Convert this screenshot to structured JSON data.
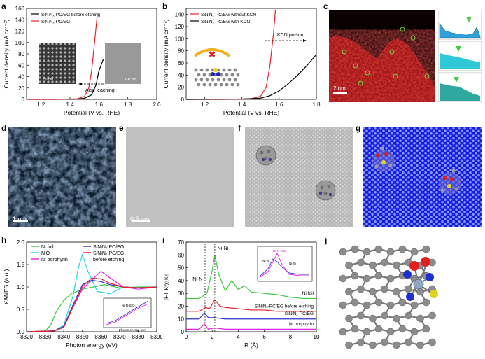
{
  "panels": {
    "a": {
      "letter": "a",
      "chart_data": {
        "type": "line",
        "xlabel": "Potential (V vs. RHE)",
        "ylabel": "Current density (mA cm⁻²)",
        "xlim": [
          1.1,
          2.0
        ],
        "ylim": [
          0,
          160
        ],
        "xticks": [
          "1.2",
          "1.4",
          "1.6",
          "1.8",
          "2.0"
        ],
        "yticks": [
          "0",
          "20",
          "40",
          "60",
          "80",
          "100",
          "120",
          "140",
          "160"
        ],
        "legend": [
          "SiNiNₓ-PC/EG before etching",
          "SiNiNₓ-PC/EG"
        ],
        "series": [
          {
            "name": "SiNiNₓ-PC/EG before etching",
            "color": "#000000",
            "x": [
              1.1,
              1.3,
              1.45,
              1.5,
              1.55,
              1.58,
              1.6,
              1.63
            ],
            "y": [
              0,
              0,
              0.5,
              2,
              8,
              25,
              50,
              70
            ]
          },
          {
            "name": "SiNiNₓ-PC/EG",
            "color": "#e8202a",
            "x": [
              1.1,
              1.3,
              1.45,
              1.5,
              1.53,
              1.55,
              1.57,
              1.59
            ],
            "y": [
              0,
              0,
              1,
              5,
              20,
              50,
              100,
              152
            ]
          }
        ],
        "annotation": "Acid leaching",
        "scale_bars": [
          "50 nm",
          "100 nm"
        ]
      }
    },
    "b": {
      "letter": "b",
      "chart_data": {
        "type": "line",
        "xlabel": "Potential (V vs. RHE)",
        "ylabel": "Current density (mA cm⁻²)",
        "xlim": [
          1.1,
          1.8
        ],
        "ylim": [
          0,
          150
        ],
        "xticks": [
          "1.2",
          "1.4",
          "1.6",
          "1.8"
        ],
        "yticks": [
          "0",
          "20",
          "40",
          "60",
          "80",
          "100",
          "120",
          "140"
        ],
        "legend": [
          "SiNiNₓ-PC/EG without KCN",
          "SiNiNₓ-PC/EG with KCN"
        ],
        "series": [
          {
            "name": "SiNiNₓ-PC/EG without KCN",
            "color": "#e8202a",
            "x": [
              1.1,
              1.3,
              1.45,
              1.5,
              1.53,
              1.55,
              1.57,
              1.58
            ],
            "y": [
              0,
              0,
              1,
              5,
              20,
              55,
              110,
              148
            ]
          },
          {
            "name": "SiNiNₓ-PC/EG with KCN",
            "color": "#000000",
            "x": [
              1.1,
              1.4,
              1.5,
              1.55,
              1.6,
              1.65,
              1.7,
              1.75,
              1.8
            ],
            "y": [
              0,
              0.5,
              2,
              6,
              14,
              26,
              40,
              56,
              74
            ]
          }
        ],
        "annotation": "KCN poison"
      }
    },
    "c": {
      "letter": "c",
      "scale_bar": "2 nm"
    },
    "d": {
      "letter": "d",
      "scale_bar": "1 nm"
    },
    "e": {
      "letter": "e",
      "scale_bar": "0.5 nm"
    },
    "f": {
      "letter": "f"
    },
    "g": {
      "letter": "g"
    },
    "h": {
      "letter": "h",
      "chart_data": {
        "type": "line",
        "xlabel": "Photon energy (eV)",
        "ylabel": "XANES (a.u.)",
        "xlim": [
          8320,
          8390
        ],
        "ylim": [
          0,
          2.0
        ],
        "xticks": [
          "8320",
          "8330",
          "8340",
          "8350",
          "8360",
          "8370",
          "8380",
          "8390"
        ],
        "yticks": [
          "0.0",
          "0.5",
          "1.0",
          "1.5",
          "2.0"
        ],
        "legend": [
          "Ni foil",
          "NiO",
          "Ni porphyrin",
          "SiNiNₓ-PC/EG",
          "SiNiNₓ-PC/EG",
          "before etching"
        ],
        "series": [
          {
            "name": "Ni foil",
            "color": "#3cc83c",
            "x": [
              8320,
              8330,
              8333,
              8336,
              8340,
              8344,
              8350,
              8356,
              8362,
              8370,
              8380,
              8390
            ],
            "y": [
              0,
              0.02,
              0.15,
              0.45,
              0.7,
              0.85,
              0.95,
              1.0,
              1.05,
              0.98,
              1.0,
              1.0
            ]
          },
          {
            "name": "NiO",
            "color": "#20d8e0",
            "x": [
              8320,
              8335,
              8340,
              8345,
              8348,
              8350,
              8353,
              8358,
              8365,
              8372,
              8380,
              8390
            ],
            "y": [
              0,
              0.02,
              0.15,
              0.8,
              1.45,
              1.72,
              1.35,
              0.9,
              0.85,
              1.0,
              0.98,
              1.0
            ]
          },
          {
            "name": "Ni porphyrin",
            "color": "#e020e0",
            "x": [
              8320,
              8335,
              8340,
              8345,
              8350,
              8355,
              8360,
              8365,
              8372,
              8380,
              8390
            ],
            "y": [
              0,
              0.02,
              0.1,
              0.55,
              0.95,
              1.15,
              1.35,
              1.2,
              1.0,
              0.95,
              1.0
            ]
          },
          {
            "name": "SiNiNₓ-PC/EG",
            "color": "#3030c8",
            "x": [
              8320,
              8335,
              8340,
              8345,
              8350,
              8355,
              8360,
              8365,
              8372,
              8380,
              8390
            ],
            "y": [
              0,
              0.02,
              0.12,
              0.6,
              1.05,
              1.15,
              1.12,
              1.05,
              1.0,
              0.98,
              1.0
            ]
          },
          {
            "name": "SiNiNₓ-PC/EG before etching",
            "color": "#e8202a",
            "x": [
              8320,
              8335,
              8340,
              8345,
              8350,
              8355,
              8360,
              8365,
              8372,
              8380,
              8390
            ],
            "y": [
              0,
              0.02,
              0.1,
              0.55,
              1.0,
              1.2,
              1.18,
              1.08,
              1.0,
              0.98,
              1.0
            ]
          }
        ],
        "inset_label": "Ni-N-SiO₂",
        "inset_xlabel": "Photon energy (eV)"
      }
    },
    "i": {
      "letter": "i",
      "chart_data": {
        "type": "line",
        "xlabel": "R (Å)",
        "ylabel": "|FT k³χ(k)|",
        "xlim": [
          0,
          10
        ],
        "ylim": [
          0,
          70
        ],
        "xticks": [
          "0",
          "2",
          "4",
          "6",
          "8",
          "10"
        ],
        "yticks": [
          "0",
          "10",
          "20",
          "30",
          "40",
          "50",
          "60",
          "70"
        ],
        "labels": [
          "Ni-N",
          "Ni-Ni",
          "Ni foil",
          "SiNiNₓ-PC/EG before etching",
          "SiNiNₓ-PC/EG",
          "Ni porphyrin"
        ],
        "series": [
          {
            "name": "Ni foil",
            "color": "#3cc83c",
            "x": [
              0,
              1,
              1.6,
              2.0,
              2.2,
              2.5,
              3,
              3.5,
              4,
              4.5,
              5,
              6,
              7,
              8,
              9,
              10
            ],
            "y": [
              26,
              26,
              30,
              48,
              60,
              45,
              32,
              40,
              33,
              36,
              31,
              30,
              29,
              27,
              26,
              26
            ]
          },
          {
            "name": "SiNiNₓ-PC/EG before etching",
            "color": "#e8202a",
            "x": [
              0,
              1,
              1.5,
              1.8,
              2.2,
              2.6,
              3,
              4,
              5,
              6,
              7,
              8,
              9,
              10
            ],
            "y": [
              16,
              16,
              19,
              18,
              25,
              20,
              19,
              18,
              17,
              17,
              16,
              16,
              16,
              16
            ]
          },
          {
            "name": "SiNiNₓ-PC/EG",
            "color": "#3030c8",
            "x": [
              0,
              1,
              1.4,
              1.7,
              2.2,
              3,
              4,
              5,
              6,
              7,
              8,
              9,
              10
            ],
            "y": [
              10,
              10,
              15,
              11,
              11,
              10,
              10,
              10,
              10,
              10,
              10,
              10,
              10
            ]
          },
          {
            "name": "Ni porphyrin",
            "color": "#e020e0",
            "x": [
              0,
              1,
              1.4,
              1.7,
              2.2,
              3,
              4,
              5,
              6,
              7,
              8,
              9,
              10
            ],
            "y": [
              2,
              2,
              6,
              2,
              3,
              2,
              2,
              2,
              2,
              2,
              2,
              2,
              2
            ]
          }
        ],
        "inset_labels": [
          "Ni-N-SiO₂",
          "Ni-N",
          "Ni-Si"
        ]
      }
    },
    "j": {
      "letter": "j"
    }
  }
}
